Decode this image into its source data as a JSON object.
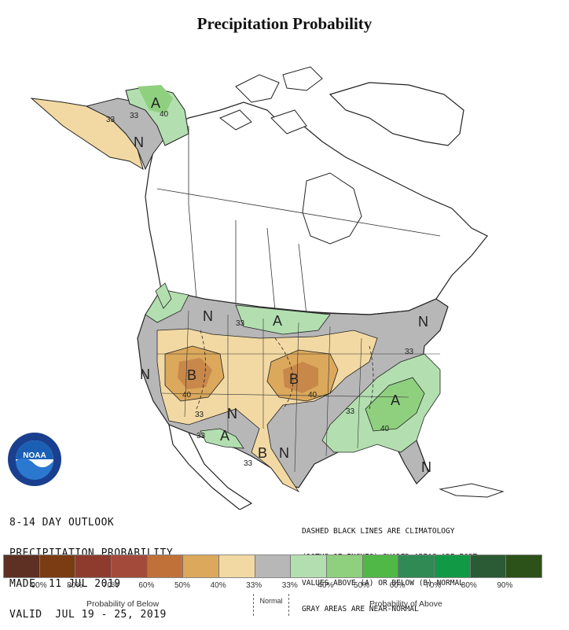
{
  "title": "Precipitation Probability",
  "logo_text": "NOAA",
  "outlook_lines": [
    "8-14 DAY OUTLOOK",
    "PRECIPITATION PROBABILITY",
    "MADE  11 JUL 2019",
    "VALID  JUL 19 - 25, 2019"
  ],
  "note_lines": [
    "DASHED BLACK LINES ARE CLIMATOLOGY",
    "(10THS OF INCHES) SHADED AREAS ARE FCST",
    "VALUES ABOVE (A) OR BELOW (B) NORMAL",
    "GRAY AREAS ARE NEAR-NORMAL"
  ],
  "map_labels": {
    "a_alaska": "A",
    "n_alaska": "N",
    "c33_alaska_a": "33",
    "c33_alaska_b": "33",
    "c40_alaska": "40",
    "n_northwest": "N",
    "c33_north": "33",
    "a_north": "A",
    "b_west": "B",
    "c40_west": "40",
    "n_nevada": "N",
    "c33_sw1": "33",
    "n_sw": "N",
    "c33_sw2": "33",
    "a_sw": "A",
    "b_texas": "B",
    "n_texas": "N",
    "c33_texas": "33",
    "b_central": "B",
    "c40_central": "40",
    "n_east": "N",
    "c33_east": "33",
    "a_southeast": "A",
    "c40_southeast": "40",
    "c33_southeast": "33",
    "n_florida": "N"
  },
  "legend": {
    "colors": [
      "#5e2f23",
      "#7c3c13",
      "#8e3b2e",
      "#a44a3a",
      "#c0713a",
      "#dba85c",
      "#f2d9a3",
      "#b7b7b7",
      "#b3dfb0",
      "#8fd07f",
      "#4fb847",
      "#2f8a54",
      "#129946",
      "#2b5b34",
      "#2c5119"
    ],
    "tick_labels": [
      "90%",
      "80%",
      "70%",
      "60%",
      "50%",
      "40%",
      "33%",
      "33%",
      "40%",
      "50%",
      "60%",
      "70%",
      "80%",
      "90%"
    ],
    "below_label": "Probability of Below",
    "normal_label": "Normal",
    "above_label": "Probability of Above"
  }
}
